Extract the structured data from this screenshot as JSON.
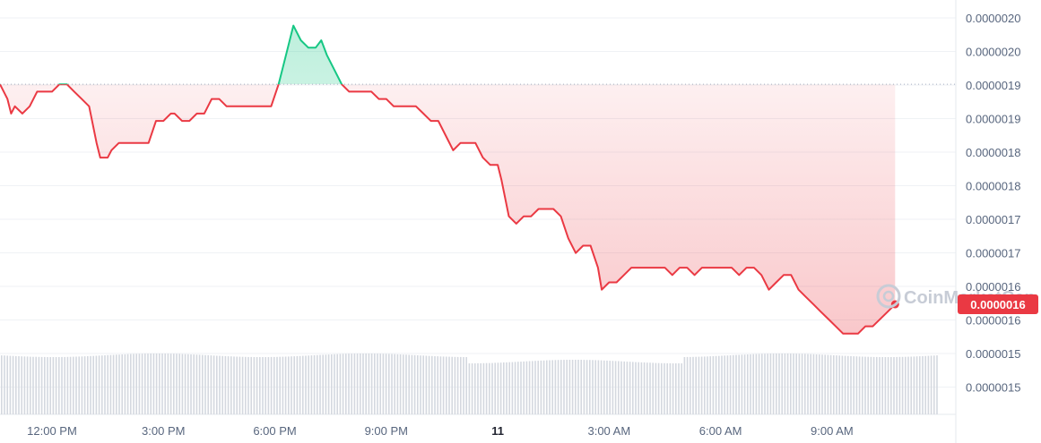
{
  "chart_data": {
    "type": "line",
    "y_ticks": [
      "0.0000020",
      "0.0000020",
      "0.0000019",
      "0.0000019",
      "0.0000018",
      "0.0000018",
      "0.0000017",
      "0.0000017",
      "0.0000016",
      "0.0000016",
      "0.0000015",
      "0.0000015"
    ],
    "x_ticks": [
      {
        "label": "12:00 PM",
        "t": 12.0,
        "bold": false
      },
      {
        "label": "3:00 PM",
        "t": 15.0,
        "bold": false
      },
      {
        "label": "6:00 PM",
        "t": 18.0,
        "bold": false
      },
      {
        "label": "9:00 PM",
        "t": 21.0,
        "bold": false
      },
      {
        "label": "11",
        "t": 24.0,
        "bold": true
      },
      {
        "label": "3:00 AM",
        "t": 27.0,
        "bold": false
      },
      {
        "label": "6:00 AM",
        "t": 30.0,
        "bold": false
      },
      {
        "label": "9:00 AM",
        "t": 33.0,
        "bold": false
      }
    ],
    "x_range": [
      10.6,
      35.9
    ],
    "y_range": [
      1.46e-06,
      2.02e-06
    ],
    "baseline_value": 1.91e-06,
    "current_value_label": "0.0000016",
    "series": [
      {
        "t": [
          10.6,
          10.8,
          10.9,
          11.0,
          11.2,
          11.4,
          11.6,
          11.8,
          12.0,
          12.2,
          12.4,
          12.6,
          12.8,
          13.0,
          13.2,
          13.3,
          13.5,
          13.6,
          13.8,
          14.0,
          14.2,
          14.4,
          14.6,
          14.8,
          15.0,
          15.2,
          15.3,
          15.5,
          15.7,
          15.9,
          16.1,
          16.3,
          16.5,
          16.7,
          16.9,
          17.1,
          17.3,
          17.5,
          17.7,
          17.9,
          18.1,
          18.3,
          18.5,
          18.7,
          18.9,
          19.1,
          19.25,
          19.4,
          19.6,
          19.8,
          20.0,
          20.2,
          20.4,
          20.6,
          20.8,
          21.0,
          21.2,
          21.4,
          21.6,
          21.8,
          22.0,
          22.2,
          22.4,
          22.6,
          22.8,
          23.0,
          23.2,
          23.4,
          23.6,
          23.8,
          24.0,
          24.1,
          24.3,
          24.5,
          24.7,
          24.9,
          25.1,
          25.3,
          25.5,
          25.7,
          25.9,
          26.1,
          26.3,
          26.5,
          26.7,
          26.8,
          27.0,
          27.2,
          27.4,
          27.6,
          27.8,
          28.0,
          28.2,
          28.3,
          28.5,
          28.7,
          28.9,
          29.1,
          29.3,
          29.5,
          29.7,
          29.9,
          30.1,
          30.3,
          30.5,
          30.7,
          30.9,
          31.1,
          31.3,
          31.5,
          31.7,
          31.9,
          32.1,
          32.3,
          32.5,
          32.7,
          32.9,
          33.1,
          33.3,
          33.5,
          33.7,
          33.9,
          34.1,
          34.3,
          34.5,
          34.7
        ],
        "values": [
          1.91e-06,
          1.89e-06,
          1.87e-06,
          1.88e-06,
          1.87e-06,
          1.88e-06,
          1.9e-06,
          1.9e-06,
          1.9e-06,
          1.91e-06,
          1.91e-06,
          1.9e-06,
          1.89e-06,
          1.88e-06,
          1.83e-06,
          1.81e-06,
          1.81e-06,
          1.82e-06,
          1.83e-06,
          1.83e-06,
          1.83e-06,
          1.83e-06,
          1.83e-06,
          1.86e-06,
          1.86e-06,
          1.87e-06,
          1.87e-06,
          1.86e-06,
          1.86e-06,
          1.87e-06,
          1.87e-06,
          1.89e-06,
          1.89e-06,
          1.88e-06,
          1.88e-06,
          1.88e-06,
          1.88e-06,
          1.88e-06,
          1.88e-06,
          1.88e-06,
          1.91e-06,
          1.95e-06,
          1.99e-06,
          1.97e-06,
          1.96e-06,
          1.96e-06,
          1.97e-06,
          1.95e-06,
          1.93e-06,
          1.91e-06,
          1.9e-06,
          1.9e-06,
          1.9e-06,
          1.9e-06,
          1.89e-06,
          1.89e-06,
          1.88e-06,
          1.88e-06,
          1.88e-06,
          1.88e-06,
          1.87e-06,
          1.86e-06,
          1.86e-06,
          1.84e-06,
          1.82e-06,
          1.83e-06,
          1.83e-06,
          1.83e-06,
          1.81e-06,
          1.8e-06,
          1.8e-06,
          1.78e-06,
          1.73e-06,
          1.72e-06,
          1.73e-06,
          1.73e-06,
          1.74e-06,
          1.74e-06,
          1.74e-06,
          1.73e-06,
          1.7e-06,
          1.68e-06,
          1.69e-06,
          1.69e-06,
          1.66e-06,
          1.63e-06,
          1.64e-06,
          1.64e-06,
          1.65e-06,
          1.66e-06,
          1.66e-06,
          1.66e-06,
          1.66e-06,
          1.66e-06,
          1.66e-06,
          1.65e-06,
          1.66e-06,
          1.66e-06,
          1.65e-06,
          1.66e-06,
          1.66e-06,
          1.66e-06,
          1.66e-06,
          1.66e-06,
          1.65e-06,
          1.66e-06,
          1.66e-06,
          1.65e-06,
          1.63e-06,
          1.64e-06,
          1.65e-06,
          1.65e-06,
          1.63e-06,
          1.62e-06,
          1.61e-06,
          1.6e-06,
          1.59e-06,
          1.58e-06,
          1.57e-06,
          1.57e-06,
          1.57e-06,
          1.58e-06,
          1.58e-06,
          1.59e-06,
          1.6e-06,
          1.61e-06
        ]
      }
    ],
    "volume_level": 0.6,
    "colors": {
      "up": "#16c784",
      "down": "#ea3943",
      "grid": "#eff2f5",
      "axis_text": "#58667e",
      "volume": "#d4d8df"
    },
    "legend": "none",
    "grid": true
  },
  "watermark": {
    "icon": "coinmarketcap-logo-icon",
    "text": "CoinMarketCap"
  }
}
